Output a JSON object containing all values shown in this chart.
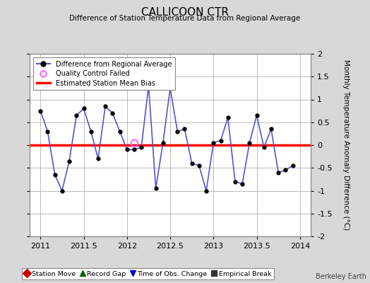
{
  "title": "CALLICOON CTR",
  "subtitle": "Difference of Station Temperature Data from Regional Average",
  "ylabel": "Monthly Temperature Anomaly Difference (°C)",
  "xlim": [
    2010.875,
    2014.125
  ],
  "ylim": [
    -2,
    2
  ],
  "yticks": [
    -2,
    -1.5,
    -1,
    -0.5,
    0,
    0.5,
    1,
    1.5,
    2
  ],
  "ytick_labels": [
    "-2",
    "-1.5",
    "-1",
    "-0.5",
    "0",
    "0.5",
    "1",
    "1.5",
    "2"
  ],
  "xticks": [
    2011,
    2011.5,
    2012,
    2012.5,
    2013,
    2013.5,
    2014
  ],
  "xtick_labels": [
    "2011",
    "2011.5",
    "2012",
    "2012.5",
    "2013",
    "2013.5",
    "2014"
  ],
  "background_color": "#d8d8d8",
  "plot_background": "#ffffff",
  "grid_color": "#b0b0b0",
  "bias_value": 0.0,
  "bias_color": "#ff0000",
  "line_color": "#5555cc",
  "marker_color": "#000000",
  "qc_fail_x": 2012.0833,
  "qc_fail_y": 0.05,
  "months": [
    2011.0,
    2011.0833,
    2011.1667,
    2011.25,
    2011.3333,
    2011.4167,
    2011.5,
    2011.5833,
    2011.6667,
    2011.75,
    2011.8333,
    2011.9167,
    2012.0,
    2012.0833,
    2012.1667,
    2012.25,
    2012.3333,
    2012.4167,
    2012.5,
    2012.5833,
    2012.6667,
    2012.75,
    2012.8333,
    2012.9167,
    2013.0,
    2013.0833,
    2013.1667,
    2013.25,
    2013.3333,
    2013.4167,
    2013.5,
    2013.5833,
    2013.6667,
    2013.75,
    2013.8333,
    2013.9167
  ],
  "values": [
    0.75,
    0.3,
    -0.65,
    -1.0,
    -0.35,
    0.65,
    0.8,
    0.3,
    -0.3,
    0.85,
    0.7,
    0.3,
    -0.1,
    -0.1,
    -0.05,
    1.3,
    -0.95,
    0.05,
    1.25,
    0.3,
    0.35,
    -0.4,
    -0.45,
    -1.0,
    0.05,
    0.1,
    0.6,
    -0.8,
    -0.85,
    0.05,
    0.65,
    -0.05,
    0.35,
    -0.6,
    -0.55,
    -0.45
  ],
  "watermark": "Berkeley Earth",
  "line_color_legend": "#5555cc",
  "qc_edge_color": "#ff66ff",
  "bias_lw": 2.5,
  "bottom_legend": [
    {
      "label": "Station Move",
      "marker": "D",
      "color": "#cc0000"
    },
    {
      "label": "Record Gap",
      "marker": "^",
      "color": "#006600"
    },
    {
      "label": "Time of Obs. Change",
      "marker": "v",
      "color": "#0000cc"
    },
    {
      "label": "Empirical Break",
      "marker": "s",
      "color": "#333333"
    }
  ]
}
